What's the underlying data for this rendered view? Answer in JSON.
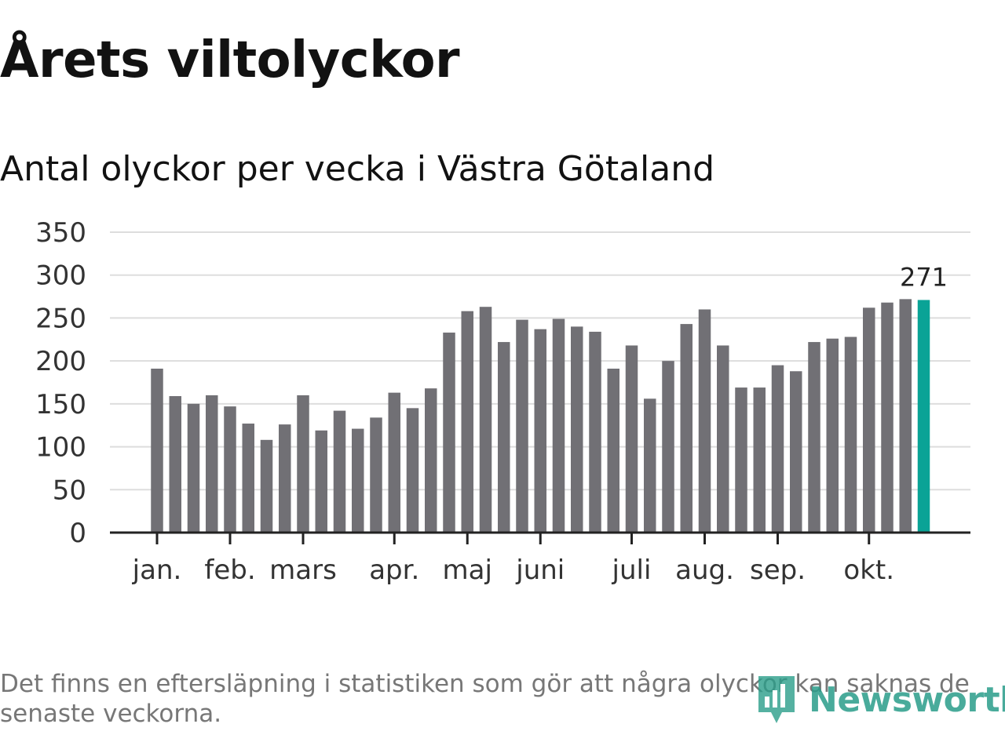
{
  "title": "Årets viltolyckor",
  "subtitle": "Antal olyckor per vecka i Västra Götaland",
  "footnote": "Det finns en eftersläpning i statistiken som gör att några olyckor kan saknas de senaste veckorna.",
  "brand": "Newsworthy",
  "colors": {
    "bar": "#717075",
    "highlight": "#0aa396",
    "grid": "#dddddd",
    "axis": "#222222"
  },
  "chart_data": {
    "type": "bar",
    "title": "Antal olyckor per vecka i Västra Götaland",
    "xlabel": "",
    "ylabel": "",
    "ylim": [
      0,
      350
    ],
    "yticks": [
      0,
      50,
      100,
      150,
      200,
      250,
      300,
      350
    ],
    "week_values": [
      191,
      159,
      150,
      160,
      147,
      127,
      108,
      126,
      160,
      119,
      142,
      121,
      134,
      163,
      145,
      168,
      233,
      258,
      263,
      222,
      248,
      237,
      249,
      240,
      234,
      191,
      218,
      156,
      200,
      243,
      260,
      218,
      169,
      169,
      195,
      188,
      222,
      226,
      228,
      262,
      268,
      272,
      271
    ],
    "highlight_index": 42,
    "highlight_label": "271",
    "month_ticks": [
      {
        "label": "jan.",
        "week_index": 0
      },
      {
        "label": "feb.",
        "week_index": 4
      },
      {
        "label": "mars",
        "week_index": 8
      },
      {
        "label": "apr.",
        "week_index": 13
      },
      {
        "label": "maj",
        "week_index": 17
      },
      {
        "label": "juni",
        "week_index": 21
      },
      {
        "label": "juli",
        "week_index": 26
      },
      {
        "label": "aug.",
        "week_index": 30
      },
      {
        "label": "sep.",
        "week_index": 34
      },
      {
        "label": "okt.",
        "week_index": 39
      }
    ],
    "grid": true
  }
}
